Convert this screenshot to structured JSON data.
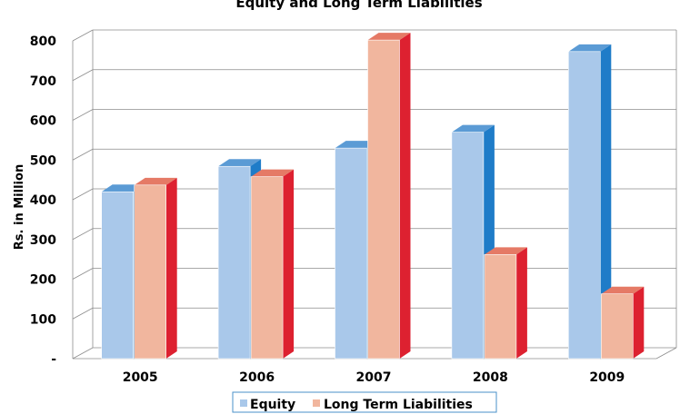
{
  "chart_data": {
    "type": "bar",
    "title": "Equity and Long Term Liabilities",
    "xlabel": "",
    "ylabel": "Rs. in Million",
    "categories": [
      "2005",
      "2006",
      "2007",
      "2008",
      "2009"
    ],
    "ylim": [
      0,
      800
    ],
    "y_ticks": [
      "-",
      "100",
      "200",
      "300",
      "400",
      "500",
      "600",
      "700",
      "800"
    ],
    "grid": true,
    "legend_position": "bottom",
    "series": [
      {
        "name": "Equity",
        "values": [
          420,
          484,
          530,
          570,
          773
        ],
        "color_front": "#a9c8ea",
        "color_top": "#5b9bd5",
        "color_side": "#1f7cc8"
      },
      {
        "name": "Long Term Liabilities",
        "values": [
          437,
          458,
          802,
          262,
          163
        ],
        "color_front": "#f1b69e",
        "color_top": "#e57a66",
        "color_side": "#dd2130"
      }
    ]
  }
}
